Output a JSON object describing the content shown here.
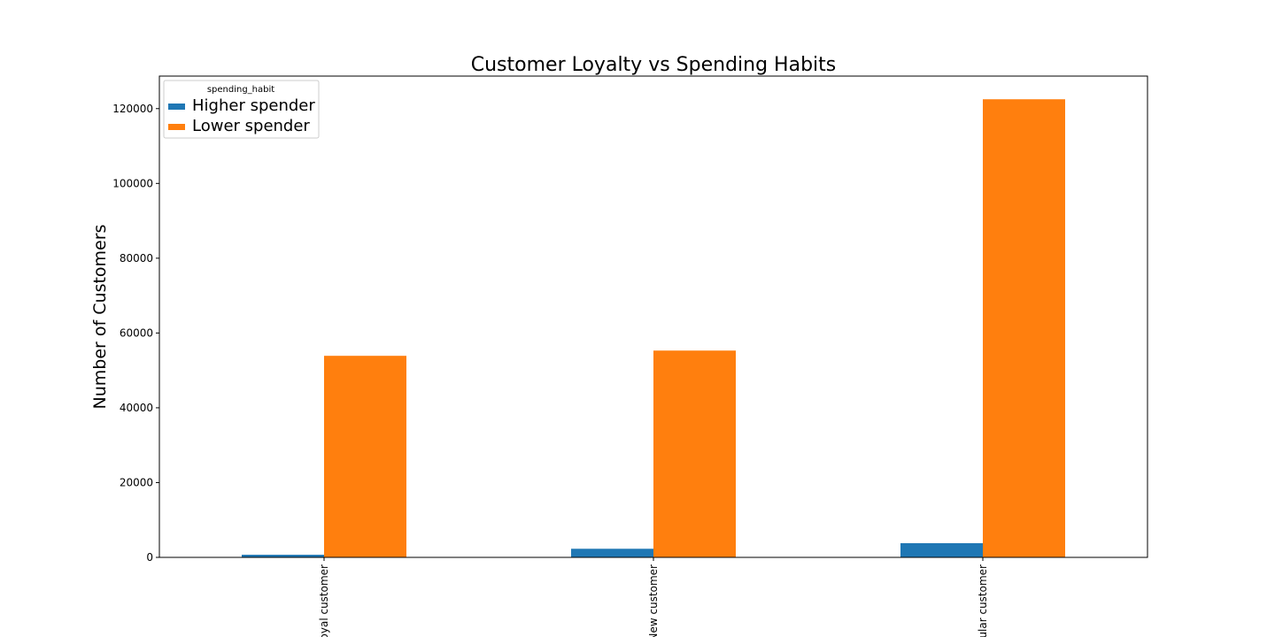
{
  "chart_data": {
    "type": "bar",
    "title": "Customer Loyalty vs Spending Habits",
    "xlabel": "",
    "ylabel": "Number of Customers",
    "categories": [
      "Loyal customer",
      "New customer",
      "Regular customer"
    ],
    "series": [
      {
        "name": "Higher spender",
        "color": "#1f77b4",
        "values": [
          700,
          2300,
          3800
        ]
      },
      {
        "name": "Lower spender",
        "color": "#ff7f0e",
        "values": [
          53900,
          55300,
          122500
        ]
      }
    ],
    "ylim": [
      0,
      128700
    ],
    "yticks": [
      0,
      20000,
      40000,
      60000,
      80000,
      100000,
      120000
    ],
    "legend": {
      "title": "spending_habit",
      "placement": "top-left"
    },
    "grid": false
  }
}
